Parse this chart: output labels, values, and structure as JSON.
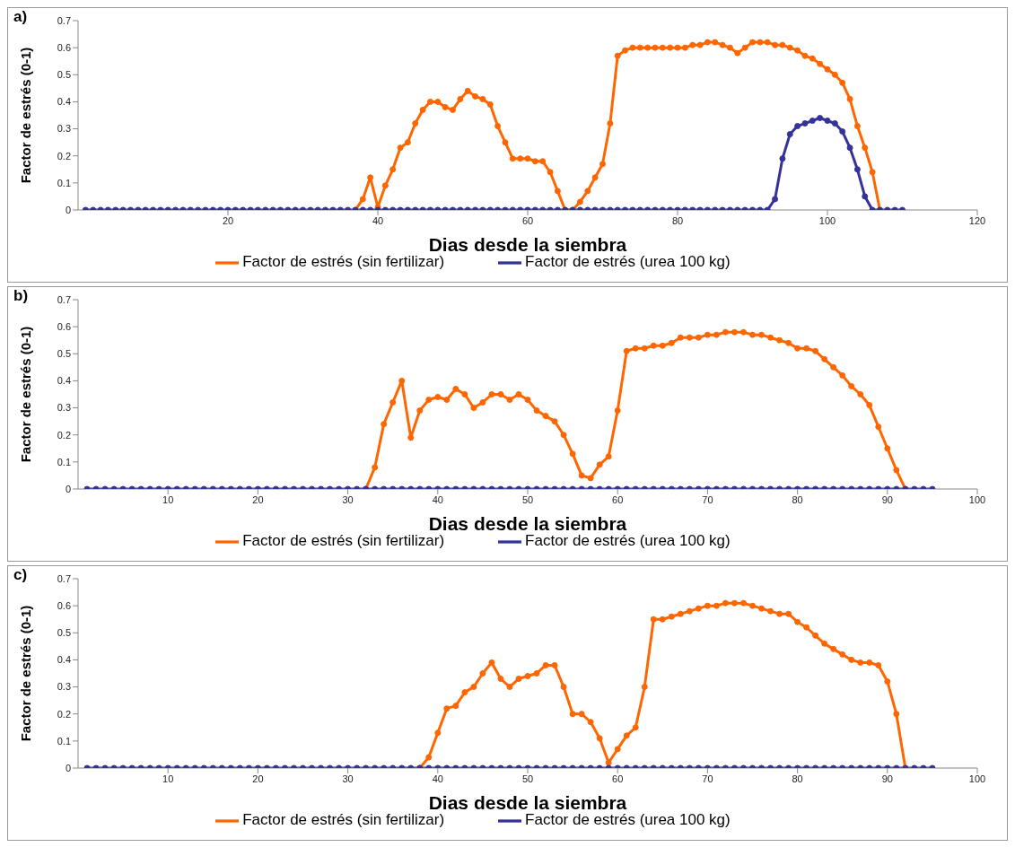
{
  "chart_data": [
    {
      "type": "line",
      "title": "a)",
      "xlabel": "Dias desde la siembra",
      "ylabel": "Factor de estrés (0-1)",
      "legend": "bottom",
      "marker": "circle",
      "xlim": [
        0,
        120
      ],
      "xticks": [
        20,
        40,
        60,
        80,
        100,
        120
      ],
      "ylim": [
        0,
        0.7
      ],
      "yticks": [
        0,
        0.1,
        0.2,
        0.3,
        0.4,
        0.5,
        0.6,
        0.7
      ],
      "x": [
        1,
        2,
        3,
        4,
        5,
        6,
        7,
        8,
        9,
        10,
        11,
        12,
        13,
        14,
        15,
        16,
        17,
        18,
        19,
        20,
        21,
        22,
        23,
        24,
        25,
        26,
        27,
        28,
        29,
        30,
        31,
        32,
        33,
        34,
        35,
        36,
        37,
        38,
        39,
        40,
        41,
        42,
        43,
        44,
        45,
        46,
        47,
        48,
        49,
        50,
        51,
        52,
        53,
        54,
        55,
        56,
        57,
        58,
        59,
        60,
        61,
        62,
        63,
        64,
        65,
        66,
        67,
        68,
        69,
        70,
        71,
        72,
        73,
        74,
        75,
        76,
        77,
        78,
        79,
        80,
        81,
        82,
        83,
        84,
        85,
        86,
        87,
        88,
        89,
        90,
        91,
        92,
        93,
        94,
        95,
        96,
        97,
        98,
        99,
        100,
        101,
        102,
        103,
        104,
        105,
        106,
        107,
        108,
        109,
        110
      ],
      "series": [
        {
          "name": "Factor de estrés (sin fertilizar)",
          "color": "#ff6600",
          "values": [
            null,
            null,
            null,
            null,
            null,
            null,
            null,
            null,
            null,
            null,
            null,
            null,
            null,
            null,
            null,
            null,
            null,
            null,
            null,
            null,
            null,
            null,
            null,
            null,
            null,
            null,
            null,
            null,
            null,
            null,
            null,
            null,
            null,
            null,
            null,
            null,
            0,
            0.04,
            0.12,
            0.01,
            0.09,
            0.15,
            0.23,
            0.25,
            0.32,
            0.37,
            0.4,
            0.4,
            0.38,
            0.37,
            0.41,
            0.44,
            0.42,
            0.41,
            0.39,
            0.31,
            0.25,
            0.19,
            0.19,
            0.19,
            0.18,
            0.18,
            0.14,
            0.07,
            0,
            0,
            0.03,
            0.07,
            0.12,
            0.17,
            0.32,
            0.57,
            0.59,
            0.6,
            0.6,
            0.6,
            0.6,
            0.6,
            0.6,
            0.6,
            0.6,
            0.61,
            0.61,
            0.62,
            0.62,
            0.61,
            0.6,
            0.58,
            0.6,
            0.62,
            0.62,
            0.62,
            0.61,
            0.61,
            0.6,
            0.59,
            0.57,
            0.56,
            0.54,
            0.52,
            0.5,
            0.47,
            0.41,
            0.31,
            0.23,
            0.14,
            0,
            null,
            null,
            null
          ]
        },
        {
          "name": "Factor de estrés (urea 100 kg)",
          "color": "#333399",
          "values": [
            0,
            0,
            0,
            0,
            0,
            0,
            0,
            0,
            0,
            0,
            0,
            0,
            0,
            0,
            0,
            0,
            0,
            0,
            0,
            0,
            0,
            0,
            0,
            0,
            0,
            0,
            0,
            0,
            0,
            0,
            0,
            0,
            0,
            0,
            0,
            0,
            0,
            0,
            0,
            0,
            0,
            0,
            0,
            0,
            0,
            0,
            0,
            0,
            0,
            0,
            0,
            0,
            0,
            0,
            0,
            0,
            0,
            0,
            0,
            0,
            0,
            0,
            0,
            0,
            0,
            0,
            0,
            0,
            0,
            0,
            0,
            0,
            0,
            0,
            0,
            0,
            0,
            0,
            0,
            0,
            0,
            0,
            0,
            0,
            0,
            0,
            0,
            0,
            0,
            0,
            0,
            0,
            0.04,
            0.19,
            0.28,
            0.31,
            0.32,
            0.33,
            0.34,
            0.33,
            0.32,
            0.29,
            0.23,
            0.15,
            0.05,
            0,
            0,
            0,
            0,
            0
          ]
        }
      ]
    },
    {
      "type": "line",
      "title": "b)",
      "xlabel": "Dias desde la siembra",
      "ylabel": "Factor de estrés (0-1)",
      "legend": "bottom",
      "marker": "circle",
      "xlim": [
        0,
        100
      ],
      "xticks": [
        10,
        20,
        30,
        40,
        50,
        60,
        70,
        80,
        90,
        100
      ],
      "ylim": [
        0,
        0.7
      ],
      "yticks": [
        0,
        0.1,
        0.2,
        0.3,
        0.4,
        0.5,
        0.6,
        0.7
      ],
      "x": [
        1,
        2,
        3,
        4,
        5,
        6,
        7,
        8,
        9,
        10,
        11,
        12,
        13,
        14,
        15,
        16,
        17,
        18,
        19,
        20,
        21,
        22,
        23,
        24,
        25,
        26,
        27,
        28,
        29,
        30,
        31,
        32,
        33,
        34,
        35,
        36,
        37,
        38,
        39,
        40,
        41,
        42,
        43,
        44,
        45,
        46,
        47,
        48,
        49,
        50,
        51,
        52,
        53,
        54,
        55,
        56,
        57,
        58,
        59,
        60,
        61,
        62,
        63,
        64,
        65,
        66,
        67,
        68,
        69,
        70,
        71,
        72,
        73,
        74,
        75,
        76,
        77,
        78,
        79,
        80,
        81,
        82,
        83,
        84,
        85,
        86,
        87,
        88,
        89,
        90,
        91,
        92,
        93,
        94,
        95
      ],
      "series": [
        {
          "name": "Factor de estrés (sin fertilizar)",
          "color": "#ff6600",
          "values": [
            null,
            null,
            null,
            null,
            null,
            null,
            null,
            null,
            null,
            null,
            null,
            null,
            null,
            null,
            null,
            null,
            null,
            null,
            null,
            null,
            null,
            null,
            null,
            null,
            null,
            null,
            null,
            null,
            null,
            null,
            null,
            0,
            0.08,
            0.24,
            0.32,
            0.4,
            0.19,
            0.29,
            0.33,
            0.34,
            0.33,
            0.37,
            0.35,
            0.3,
            0.32,
            0.35,
            0.35,
            0.33,
            0.35,
            0.33,
            0.29,
            0.27,
            0.25,
            0.2,
            0.13,
            0.05,
            0.04,
            0.09,
            0.12,
            0.29,
            0.51,
            0.52,
            0.52,
            0.53,
            0.53,
            0.54,
            0.56,
            0.56,
            0.56,
            0.57,
            0.57,
            0.58,
            0.58,
            0.58,
            0.57,
            0.57,
            0.56,
            0.55,
            0.54,
            0.52,
            0.52,
            0.51,
            0.48,
            0.45,
            0.42,
            0.38,
            0.35,
            0.31,
            0.23,
            0.15,
            0.07,
            0,
            null,
            null,
            null
          ]
        },
        {
          "name": "Factor de estrés (urea 100 kg)",
          "color": "#333399",
          "values": [
            0,
            0,
            0,
            0,
            0,
            0,
            0,
            0,
            0,
            0,
            0,
            0,
            0,
            0,
            0,
            0,
            0,
            0,
            0,
            0,
            0,
            0,
            0,
            0,
            0,
            0,
            0,
            0,
            0,
            0,
            0,
            0,
            0,
            0,
            0,
            0,
            0,
            0,
            0,
            0,
            0,
            0,
            0,
            0,
            0,
            0,
            0,
            0,
            0,
            0,
            0,
            0,
            0,
            0,
            0,
            0,
            0,
            0,
            0,
            0,
            0,
            0,
            0,
            0,
            0,
            0,
            0,
            0,
            0,
            0,
            0,
            0,
            0,
            0,
            0,
            0,
            0,
            0,
            0,
            0,
            0,
            0,
            0,
            0,
            0,
            0,
            0,
            0,
            0,
            0,
            0,
            0,
            0,
            0,
            0
          ]
        }
      ]
    },
    {
      "type": "line",
      "title": "c)",
      "xlabel": "Dias desde la siembra",
      "ylabel": "Factor de estrés (0-1)",
      "legend": "bottom",
      "marker": "circle",
      "xlim": [
        0,
        100
      ],
      "xticks": [
        10,
        20,
        30,
        40,
        50,
        60,
        70,
        80,
        90,
        100
      ],
      "ylim": [
        0,
        0.7
      ],
      "yticks": [
        0,
        0.1,
        0.2,
        0.3,
        0.4,
        0.5,
        0.6,
        0.7
      ],
      "x": [
        1,
        2,
        3,
        4,
        5,
        6,
        7,
        8,
        9,
        10,
        11,
        12,
        13,
        14,
        15,
        16,
        17,
        18,
        19,
        20,
        21,
        22,
        23,
        24,
        25,
        26,
        27,
        28,
        29,
        30,
        31,
        32,
        33,
        34,
        35,
        36,
        37,
        38,
        39,
        40,
        41,
        42,
        43,
        44,
        45,
        46,
        47,
        48,
        49,
        50,
        51,
        52,
        53,
        54,
        55,
        56,
        57,
        58,
        59,
        60,
        61,
        62,
        63,
        64,
        65,
        66,
        67,
        68,
        69,
        70,
        71,
        72,
        73,
        74,
        75,
        76,
        77,
        78,
        79,
        80,
        81,
        82,
        83,
        84,
        85,
        86,
        87,
        88,
        89,
        90,
        91,
        92,
        93,
        94,
        95
      ],
      "series": [
        {
          "name": "Factor de estrés (sin fertilizar)",
          "color": "#ff6600",
          "values": [
            null,
            null,
            null,
            null,
            null,
            null,
            null,
            null,
            null,
            null,
            null,
            null,
            null,
            null,
            null,
            null,
            null,
            null,
            null,
            null,
            null,
            null,
            null,
            null,
            null,
            null,
            null,
            null,
            null,
            null,
            null,
            null,
            null,
            null,
            null,
            null,
            null,
            0,
            0.04,
            0.13,
            0.22,
            0.23,
            0.28,
            0.3,
            0.35,
            0.39,
            0.33,
            0.3,
            0.33,
            0.34,
            0.35,
            0.38,
            0.38,
            0.3,
            0.2,
            0.2,
            0.17,
            0.11,
            0.02,
            0.07,
            0.12,
            0.15,
            0.3,
            0.55,
            0.55,
            0.56,
            0.57,
            0.58,
            0.59,
            0.6,
            0.6,
            0.61,
            0.61,
            0.61,
            0.6,
            0.59,
            0.58,
            0.57,
            0.57,
            0.54,
            0.52,
            0.49,
            0.46,
            0.44,
            0.42,
            0.4,
            0.39,
            0.39,
            0.38,
            0.32,
            0.2,
            0,
            null,
            null,
            null
          ]
        },
        {
          "name": "Factor de estrés (urea 100 kg)",
          "color": "#333399",
          "values": [
            0,
            0,
            0,
            0,
            0,
            0,
            0,
            0,
            0,
            0,
            0,
            0,
            0,
            0,
            0,
            0,
            0,
            0,
            0,
            0,
            0,
            0,
            0,
            0,
            0,
            0,
            0,
            0,
            0,
            0,
            0,
            0,
            0,
            0,
            0,
            0,
            0,
            0,
            0,
            0,
            0,
            0,
            0,
            0,
            0,
            0,
            0,
            0,
            0,
            0,
            0,
            0,
            0,
            0,
            0,
            0,
            0,
            0,
            0,
            0,
            0,
            0,
            0,
            0,
            0,
            0,
            0,
            0,
            0,
            0,
            0,
            0,
            0,
            0,
            0,
            0,
            0,
            0,
            0,
            0,
            0,
            0,
            0,
            0,
            0,
            0,
            0,
            0,
            0,
            0,
            0,
            0,
            0,
            0,
            0
          ]
        }
      ]
    }
  ]
}
